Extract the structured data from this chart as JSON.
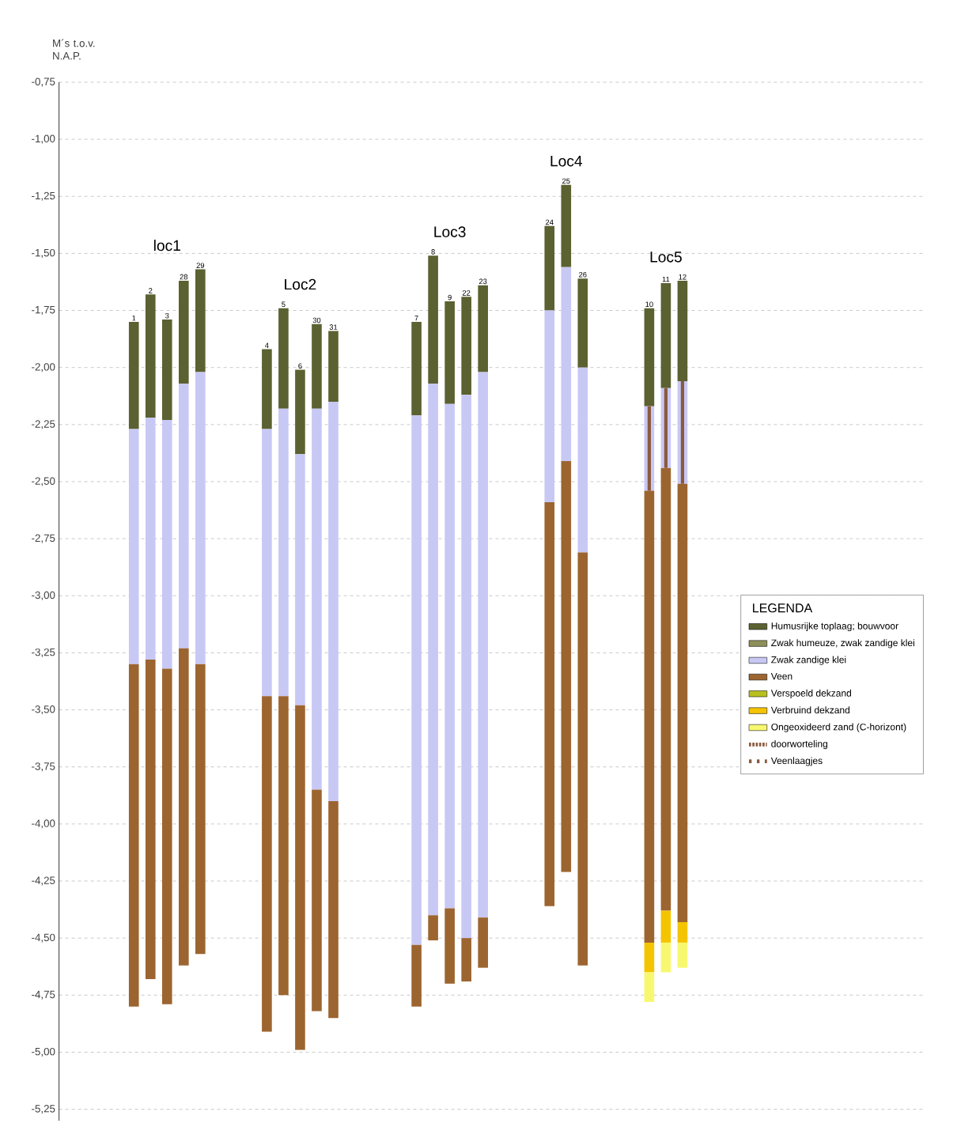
{
  "chart_data": {
    "type": "bar",
    "ylabel": "M´s t.o.v. N.A.P.",
    "legend_title": "LEGENDA",
    "legend": "right",
    "grid": "y",
    "categories": [
      null,
      null,
      null,
      null,
      "1",
      "2",
      "3",
      "28",
      "29",
      null,
      null,
      null,
      "4",
      "5",
      "6",
      "30",
      "31",
      null,
      null,
      null,
      null,
      "7",
      "8",
      "9",
      "22",
      "23",
      null,
      null,
      null,
      "24",
      "25",
      "26",
      null,
      null,
      null,
      "10",
      "11",
      "12",
      null,
      null,
      null,
      null,
      null,
      null,
      null,
      null,
      null,
      null,
      null,
      null,
      null,
      null
    ],
    "ylim": [
      -5.3,
      -0.75
    ],
    "yticks": [
      {
        "value": -0.75,
        "label": "-0,75"
      },
      {
        "value": -1.0,
        "label": "-1,00"
      },
      {
        "value": -1.25,
        "label": "-1,25"
      },
      {
        "value": -1.5,
        "label": "-1,50"
      },
      {
        "value": -1.75,
        "label": "-1,75"
      },
      {
        "value": -2.0,
        "label": "-2,00"
      },
      {
        "value": -2.25,
        "label": "-2,25"
      },
      {
        "value": -2.5,
        "label": "-2,50"
      },
      {
        "value": -2.75,
        "label": "-2,75"
      },
      {
        "value": -3.0,
        "label": "-3,00"
      },
      {
        "value": -3.25,
        "label": "-3,25"
      },
      {
        "value": -3.5,
        "label": "-3,50"
      },
      {
        "value": -3.75,
        "label": "-3,75"
      },
      {
        "value": -4.0,
        "label": "-4,00"
      },
      {
        "value": -4.25,
        "label": "-4,25"
      },
      {
        "value": -4.5,
        "label": "-4,50"
      },
      {
        "value": -4.75,
        "label": "-4,75"
      },
      {
        "value": -5.0,
        "label": "-5,00"
      },
      {
        "value": -5.25,
        "label": "-5,25"
      }
    ],
    "series": [
      {
        "name": "Humusrijke toplaag; bouwvoor",
        "color": "#5b6130",
        "base": [
          null,
          null,
          null,
          null,
          -1.8,
          -1.68,
          -1.79,
          -1.62,
          -1.57,
          null,
          null,
          null,
          -1.92,
          -1.74,
          -2.01,
          -1.81,
          -1.84,
          null,
          null,
          null,
          null,
          -1.8,
          -1.51,
          -1.71,
          -1.69,
          -1.64,
          null,
          null,
          null,
          -1.38,
          -1.2,
          -1.61,
          null,
          null,
          null,
          -1.74,
          -1.63,
          -1.62,
          null,
          null,
          null,
          null,
          null,
          null,
          null,
          null,
          null,
          null,
          null,
          null,
          null,
          null
        ],
        "values": [
          null,
          null,
          null,
          null,
          -0.47,
          -0.54,
          -0.44,
          -0.45,
          -0.45,
          null,
          null,
          null,
          -0.35,
          -0.44,
          -0.37,
          -0.37,
          -0.31,
          null,
          null,
          null,
          null,
          -0.41,
          -0.56,
          -0.45,
          -0.43,
          -0.38,
          null,
          null,
          null,
          -0.37,
          -0.36,
          -0.39,
          null,
          null,
          null,
          -0.43,
          -0.46,
          -0.44,
          null,
          null,
          null,
          null,
          null,
          null,
          null,
          null,
          null,
          null,
          null,
          null,
          null,
          null
        ]
      },
      {
        "name": "Zwak humeuze, zwak zandige klei",
        "color": "#8f8f5a",
        "values": [
          null,
          null,
          null,
          null,
          null,
          null,
          null,
          null,
          null,
          null,
          null,
          null,
          null,
          null,
          null,
          null,
          null,
          null,
          null,
          null,
          null,
          null,
          null,
          null,
          null,
          null,
          null,
          null,
          null,
          null,
          null,
          null,
          null,
          null,
          null,
          null,
          null,
          null,
          null,
          null,
          null,
          null,
          null,
          null,
          null,
          null,
          null,
          null,
          null,
          null,
          null,
          null
        ]
      },
      {
        "name": "Zwak zandige klei",
        "color": "#c8c8f5",
        "base": [
          null,
          null,
          null,
          null,
          -2.27,
          -2.22,
          -2.23,
          -2.07,
          -2.02,
          null,
          null,
          null,
          -2.27,
          -2.18,
          -2.38,
          -2.18,
          -2.15,
          null,
          null,
          null,
          null,
          -2.21,
          -2.07,
          -2.16,
          -2.12,
          -2.02,
          null,
          null,
          null,
          -1.75,
          -1.56,
          -2.0,
          null,
          null,
          null,
          -2.17,
          -2.09,
          -2.06,
          null,
          null,
          null,
          null,
          null,
          null,
          null,
          null,
          null,
          null,
          null,
          null,
          null,
          null
        ],
        "values": [
          null,
          null,
          null,
          null,
          -1.03,
          -1.06,
          -1.09,
          -1.16,
          -1.28,
          null,
          null,
          null,
          -1.17,
          -1.26,
          -1.1,
          -1.67,
          -1.75,
          null,
          null,
          null,
          null,
          -2.32,
          -2.33,
          -2.21,
          -2.38,
          -2.39,
          null,
          null,
          null,
          -0.84,
          -0.85,
          -0.81,
          null,
          null,
          null,
          -0.37,
          -0.35,
          -0.45,
          null,
          null,
          null,
          null,
          null,
          null,
          null,
          null,
          null,
          null,
          null,
          null,
          null,
          null
        ]
      },
      {
        "name": "Veen",
        "color": "#9c6530",
        "base": [
          null,
          null,
          null,
          null,
          -3.3,
          -3.28,
          -3.32,
          -3.23,
          -3.3,
          null,
          null,
          null,
          -3.44,
          -3.44,
          -3.48,
          -3.85,
          -3.9,
          null,
          null,
          null,
          null,
          -4.53,
          -4.4,
          -4.37,
          -4.5,
          -4.41,
          null,
          null,
          null,
          -2.59,
          -2.41,
          -2.81,
          null,
          null,
          null,
          -2.54,
          -2.44,
          -2.51,
          null,
          null,
          null,
          null,
          null,
          null,
          null,
          null,
          null,
          null,
          null,
          null,
          null,
          null
        ],
        "values": [
          null,
          null,
          null,
          null,
          -1.5,
          -1.4,
          -1.47,
          -1.39,
          -1.27,
          null,
          null,
          null,
          -1.47,
          -1.31,
          -1.51,
          -0.97,
          -0.95,
          null,
          null,
          null,
          null,
          -0.27,
          -0.11,
          -0.33,
          -0.19,
          -0.22,
          null,
          null,
          null,
          -1.77,
          -1.8,
          -1.81,
          null,
          null,
          null,
          -1.98,
          -1.94,
          -1.92,
          null,
          null,
          null,
          null,
          null,
          null,
          null,
          null,
          null,
          null,
          null,
          null,
          null,
          null
        ]
      },
      {
        "name": "Verspoeld dekzand",
        "color": "#b8c020",
        "values": [
          null,
          null,
          null,
          null,
          null,
          null,
          null,
          null,
          null,
          null,
          null,
          null,
          null,
          null,
          null,
          null,
          null,
          null,
          null,
          null,
          null,
          null,
          null,
          null,
          null,
          null,
          null,
          null,
          null,
          null,
          null,
          null,
          null,
          null,
          null,
          null,
          null,
          null,
          null,
          null,
          null,
          null,
          null,
          null,
          null,
          null,
          null,
          null,
          null,
          null,
          null,
          null
        ]
      },
      {
        "name": "Verbruind dekzand",
        "color": "#f5c400",
        "base": [
          null,
          null,
          null,
          null,
          null,
          null,
          null,
          null,
          null,
          null,
          null,
          null,
          null,
          null,
          null,
          null,
          null,
          null,
          null,
          null,
          null,
          null,
          null,
          null,
          null,
          null,
          null,
          null,
          null,
          null,
          null,
          null,
          null,
          null,
          null,
          -4.52,
          -4.38,
          -4.43,
          null,
          null,
          null,
          null,
          null,
          null,
          null,
          null,
          null,
          null,
          null,
          null,
          null,
          null
        ],
        "values": [
          null,
          null,
          null,
          null,
          null,
          null,
          null,
          null,
          null,
          null,
          null,
          null,
          null,
          null,
          null,
          null,
          null,
          null,
          null,
          null,
          null,
          null,
          null,
          null,
          null,
          null,
          null,
          null,
          null,
          null,
          null,
          null,
          null,
          null,
          null,
          -0.13,
          -0.14,
          -0.09,
          null,
          null,
          null,
          null,
          null,
          null,
          null,
          null,
          null,
          null,
          null,
          null,
          null,
          null
        ]
      },
      {
        "name": "Ongeoxideerd zand (C-horizont)",
        "color": "#f8f870",
        "base": [
          null,
          null,
          null,
          null,
          null,
          null,
          null,
          null,
          null,
          null,
          null,
          null,
          null,
          null,
          null,
          null,
          null,
          null,
          null,
          null,
          null,
          null,
          null,
          null,
          null,
          null,
          null,
          null,
          null,
          null,
          null,
          null,
          null,
          null,
          null,
          -4.65,
          -4.52,
          -4.52,
          null,
          null,
          null,
          null,
          null,
          null,
          null,
          null,
          null,
          null,
          null,
          null,
          null,
          null
        ],
        "values": [
          null,
          null,
          null,
          null,
          null,
          null,
          null,
          null,
          null,
          null,
          null,
          null,
          null,
          null,
          null,
          null,
          null,
          null,
          null,
          null,
          null,
          null,
          null,
          null,
          null,
          null,
          null,
          null,
          null,
          null,
          null,
          null,
          null,
          null,
          null,
          -0.13,
          -0.13,
          -0.11,
          null,
          null,
          null,
          null,
          null,
          null,
          null,
          null,
          null,
          null,
          null,
          null,
          null,
          null
        ]
      },
      {
        "name": "doorworteling",
        "color": "#8b5a3c",
        "line_style": "dashed",
        "base": [
          null,
          null,
          null,
          null,
          null,
          null,
          null,
          null,
          null,
          null,
          null,
          null,
          null,
          null,
          null,
          null,
          null,
          null,
          null,
          null,
          null,
          null,
          null,
          null,
          null,
          null,
          null,
          null,
          null,
          null,
          null,
          null,
          null,
          null,
          null,
          -2.17,
          -2.09,
          -2.06,
          null,
          null,
          null,
          null,
          null,
          null,
          null,
          null,
          null,
          null,
          null,
          null,
          null,
          null
        ],
        "values": [
          null,
          null,
          null,
          null,
          null,
          null,
          null,
          null,
          null,
          null,
          null,
          null,
          null,
          null,
          null,
          null,
          null,
          null,
          null,
          null,
          null,
          null,
          null,
          null,
          null,
          null,
          null,
          null,
          null,
          null,
          null,
          null,
          null,
          null,
          null,
          -0.37,
          -0.35,
          -0.45,
          null,
          null,
          null,
          null,
          null,
          null,
          null,
          null,
          null,
          null,
          null,
          null,
          null,
          null
        ]
      },
      {
        "name": "Veenlaagjes",
        "color": "#8b5a3c",
        "line_style": "dotted",
        "values": [
          null,
          null,
          null,
          null,
          null,
          null,
          null,
          null,
          null,
          null,
          null,
          null,
          null,
          null,
          null,
          null,
          null,
          null,
          null,
          null,
          null,
          null,
          null,
          null,
          null,
          null,
          null,
          null,
          null,
          null,
          null,
          null,
          null,
          null,
          null,
          null,
          null,
          null,
          null,
          null,
          null,
          null,
          null,
          null,
          null,
          null,
          null,
          null,
          null,
          null,
          null,
          null
        ]
      }
    ],
    "annotations": [
      "loc1",
      "Loc2",
      "Loc3",
      "Loc4",
      "Loc5"
    ]
  }
}
